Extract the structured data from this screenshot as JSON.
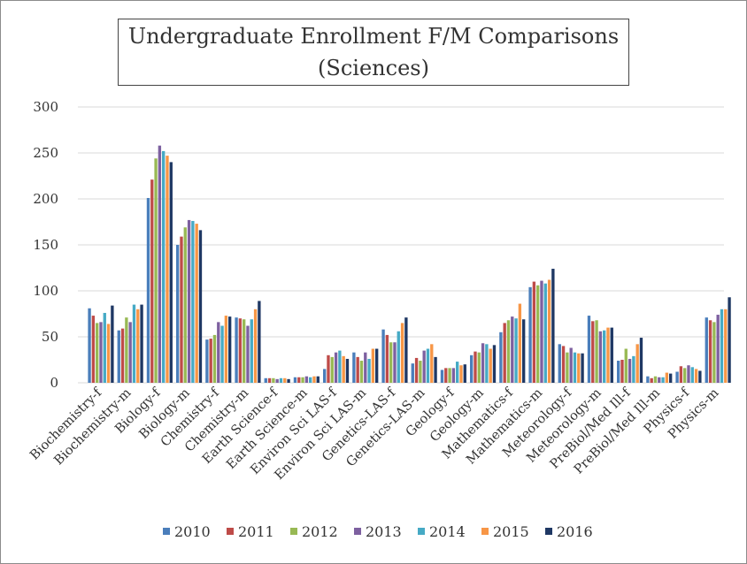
{
  "chart_data": {
    "type": "bar",
    "title_line1": "Undergraduate Enrollment F/M Comparisons",
    "title_line2": "(Sciences)",
    "xlabel": "",
    "ylabel": "",
    "ylim": [
      0,
      300
    ],
    "yticks": [
      "0",
      "50",
      "100",
      "150",
      "200",
      "250",
      "300"
    ],
    "grid": true,
    "legend_position": "bottom",
    "categories": [
      "Biochemistry-f",
      "Biochemistry-m",
      "Biology-f",
      "Biology-m",
      "Chemistry-f",
      "Chemistry-m",
      "Earth Science-f",
      "Earth Science-m",
      "Environ Sci LAS-f",
      "Environ Sci LAS-m",
      "Genetics-LAS-f",
      "Genetics-LAS-m",
      "Geology-f",
      "Geology-m",
      "Mathematics-f",
      "Mathematics-m",
      "Meteorology-f",
      "Meteorology-m",
      "PreBiol/Med Ill-f",
      "PreBiol/Med Ill-m",
      "Physics-f",
      "Physics-m"
    ],
    "series": [
      {
        "name": "2010",
        "color": "#4a7ebb",
        "values": [
          81,
          57,
          201,
          150,
          47,
          71,
          5,
          6,
          15,
          33,
          58,
          21,
          14,
          30,
          55,
          104,
          42,
          73,
          24,
          7,
          12,
          71
        ]
      },
      {
        "name": "2011",
        "color": "#be4b48",
        "values": [
          73,
          59,
          221,
          159,
          48,
          70,
          5,
          6,
          30,
          28,
          52,
          27,
          16,
          34,
          65,
          110,
          40,
          67,
          25,
          5,
          18,
          68
        ]
      },
      {
        "name": "2012",
        "color": "#98b954",
        "values": [
          65,
          71,
          244,
          169,
          52,
          69,
          5,
          6,
          28,
          24,
          44,
          24,
          16,
          33,
          68,
          106,
          33,
          68,
          37,
          7,
          16,
          66
        ]
      },
      {
        "name": "2013",
        "color": "#7d60a0",
        "values": [
          66,
          66,
          258,
          177,
          66,
          62,
          4,
          7,
          33,
          33,
          44,
          35,
          16,
          43,
          72,
          111,
          38,
          56,
          26,
          6,
          19,
          74
        ]
      },
      {
        "name": "2014",
        "color": "#46aac5",
        "values": [
          76,
          85,
          252,
          176,
          62,
          69,
          5,
          6,
          35,
          26,
          56,
          37,
          23,
          42,
          70,
          108,
          33,
          57,
          29,
          6,
          17,
          80
        ]
      },
      {
        "name": "2015",
        "color": "#f79646",
        "values": [
          64,
          80,
          247,
          173,
          73,
          80,
          5,
          7,
          29,
          37,
          65,
          42,
          19,
          37,
          86,
          112,
          32,
          60,
          42,
          11,
          15,
          80
        ]
      },
      {
        "name": "2016",
        "color": "#1f3864",
        "values": [
          84,
          85,
          240,
          166,
          72,
          89,
          4,
          7,
          26,
          37,
          71,
          28,
          20,
          41,
          69,
          124,
          32,
          60,
          49,
          10,
          13,
          93
        ]
      }
    ]
  }
}
